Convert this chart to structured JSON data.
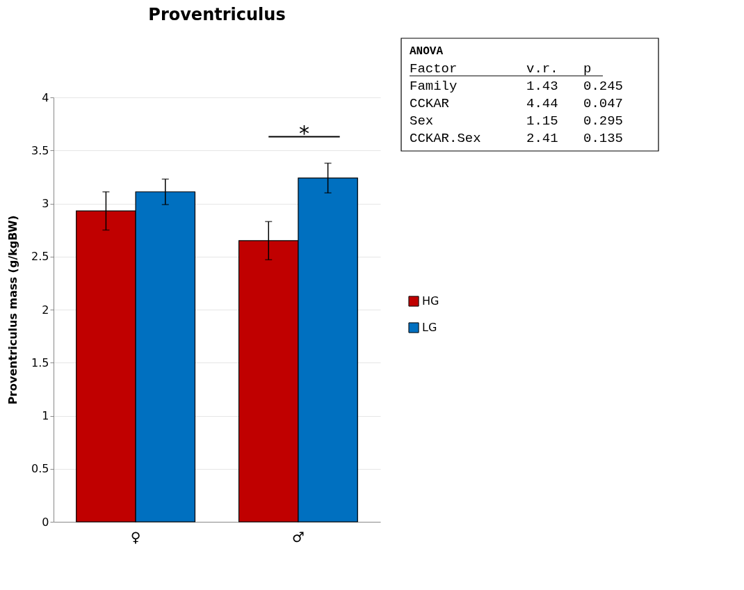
{
  "chart_data": {
    "type": "bar",
    "title": "Proventriculus",
    "ylabel": "Proventriculus mass (g/kgBW)",
    "categories": [
      "♀",
      "♂"
    ],
    "series": [
      {
        "name": "HG",
        "color": "#c00000",
        "values": [
          2.93,
          2.65
        ],
        "errors": [
          0.18,
          0.18
        ]
      },
      {
        "name": "LG",
        "color": "#0070c0",
        "values": [
          3.11,
          3.24
        ],
        "errors": [
          0.12,
          0.14
        ]
      }
    ],
    "ylim": [
      0,
      4
    ],
    "yticks": [
      0,
      0.5,
      1,
      1.5,
      2,
      2.5,
      3,
      3.5,
      4
    ],
    "grid": "y",
    "legend": "right",
    "annotations": [
      "*",
      "ANOVA",
      "Factor      v.r.   p",
      "Family      1.43  0.245",
      "CCKAR       4.44  0.047",
      "Sex         1.15  0.295",
      "CCKAR.Sex   2.41  0.135"
    ]
  }
}
